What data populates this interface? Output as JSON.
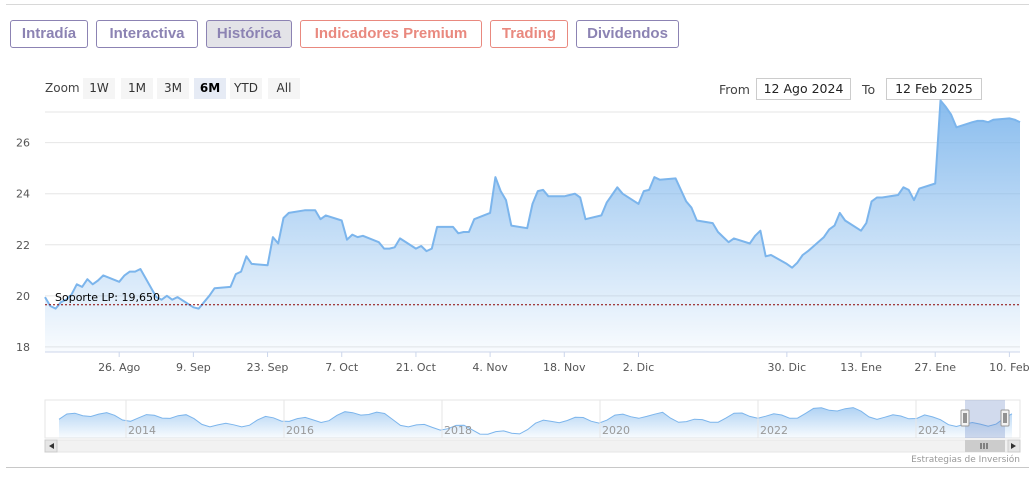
{
  "tabs": [
    {
      "label": "Intradía",
      "style": "purple",
      "active": false
    },
    {
      "label": "Interactiva",
      "style": "purple",
      "active": false
    },
    {
      "label": "Histórica",
      "style": "purple",
      "active": true
    },
    {
      "label": "Indicadores Premium",
      "style": "salmon",
      "active": false
    },
    {
      "label": "Trading",
      "style": "salmon",
      "active": false
    },
    {
      "label": "Dividendos",
      "style": "purple",
      "active": false
    }
  ],
  "zoom": {
    "label": "Zoom",
    "buttons": [
      "1W",
      "1M",
      "3M",
      "6M",
      "YTD",
      "All"
    ],
    "selected": "6M"
  },
  "range": {
    "from_label": "From",
    "from_value": "12 Ago 2024",
    "to_label": "To",
    "to_value": "12 Feb 2025"
  },
  "colors": {
    "tab_purple": "#8c83b3",
    "tab_salmon": "#e9897f",
    "series_line": "#7cb5ec",
    "support_line": "#8b0000"
  },
  "chart_data": {
    "type": "area",
    "y_ticks": [
      18,
      20,
      22,
      24,
      26
    ],
    "ylim": [
      17.8,
      27.2
    ],
    "x_tick_labels": [
      "26. Ago",
      "9. Sep",
      "23. Sep",
      "7. Oct",
      "21. Oct",
      "4. Nov",
      "18. Nov",
      "2. Dic",
      "30. Dic",
      "13. Ene",
      "27. Ene",
      "10. Feb"
    ],
    "x_tick_days": [
      14,
      28,
      42,
      56,
      70,
      84,
      98,
      112,
      140,
      154,
      168,
      182
    ],
    "xlim_days": [
      0,
      184
    ],
    "x_day_zero": "12 Ago 2024",
    "series": [
      {
        "x": [
          0,
          1,
          2,
          3,
          4,
          5,
          6,
          7,
          8,
          9,
          10,
          11,
          14,
          15,
          16,
          17,
          18,
          21,
          22,
          23,
          24,
          25,
          28,
          29,
          30,
          31,
          32,
          35,
          36,
          37,
          38,
          39,
          42,
          43,
          44,
          45,
          46,
          49,
          50,
          51,
          52,
          53,
          56,
          57,
          58,
          59,
          60,
          63,
          64,
          65,
          66,
          67,
          70,
          71,
          72,
          73,
          74,
          77,
          78,
          79,
          80,
          81,
          84,
          85,
          86,
          87,
          88,
          91,
          92,
          93,
          94,
          95,
          98,
          99,
          100,
          101,
          102,
          105,
          106,
          107,
          108,
          109,
          112,
          113,
          114,
          115,
          116,
          119,
          120,
          121,
          122,
          123,
          126,
          127,
          128,
          129,
          130,
          133,
          134,
          135,
          136,
          137,
          140,
          141,
          142,
          143,
          144,
          147,
          148,
          149,
          150,
          151,
          154,
          155,
          156,
          157,
          158,
          161,
          162,
          163,
          164,
          165,
          168,
          169,
          170,
          171,
          172,
          175,
          176,
          177,
          178,
          179,
          182,
          183,
          184
        ],
        "values": [
          19.95,
          19.6,
          19.5,
          19.75,
          19.85,
          20.05,
          20.45,
          20.35,
          20.65,
          20.45,
          20.6,
          20.8,
          20.55,
          20.8,
          20.95,
          20.95,
          21.05,
          19.95,
          19.85,
          20.0,
          19.85,
          19.95,
          19.55,
          19.5,
          19.75,
          20.0,
          20.3,
          20.35,
          20.85,
          20.95,
          21.55,
          21.25,
          21.2,
          22.3,
          22.05,
          23.05,
          23.25,
          23.35,
          23.35,
          23.35,
          23.0,
          23.15,
          22.95,
          22.2,
          22.4,
          22.3,
          22.35,
          22.1,
          21.85,
          21.85,
          21.9,
          22.25,
          21.85,
          21.95,
          21.75,
          21.85,
          22.7,
          22.7,
          22.45,
          22.5,
          22.5,
          23.0,
          23.25,
          24.65,
          24.1,
          23.75,
          22.75,
          22.65,
          23.6,
          24.1,
          24.15,
          23.9,
          23.9,
          23.95,
          24.0,
          23.85,
          23.0,
          23.15,
          23.65,
          23.95,
          24.25,
          24.0,
          23.6,
          24.1,
          24.15,
          24.65,
          24.55,
          24.6,
          24.15,
          23.7,
          23.45,
          22.95,
          22.85,
          22.5,
          22.3,
          22.1,
          22.25,
          22.05,
          22.35,
          22.55,
          21.55,
          21.6,
          21.25,
          21.1,
          21.3,
          21.6,
          21.75,
          22.3,
          22.6,
          22.75,
          23.25,
          22.95,
          22.55,
          22.85,
          23.7,
          23.85,
          23.85,
          23.95,
          24.25,
          24.15,
          23.75,
          24.2,
          24.4,
          27.65,
          27.4,
          27.1,
          26.6,
          26.8,
          26.85,
          26.85,
          26.8,
          26.9,
          26.95,
          26.9,
          26.8
        ]
      }
    ],
    "support": {
      "label": "Soporte LP: 19,650",
      "value": 19.65
    },
    "navigator": {
      "year_labels": [
        "2014",
        "2016",
        "2018",
        "2020",
        "2022",
        "2024"
      ]
    },
    "grid": true,
    "legend": "none"
  },
  "credits": "Estrategias de Inversión"
}
